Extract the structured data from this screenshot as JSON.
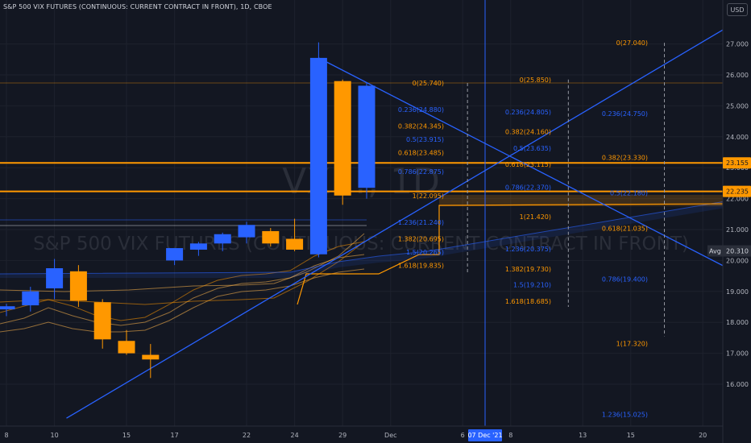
{
  "header": {
    "title": "S&P 500 VIX FUTURES (CONTINUOUS: CURRENT CONTRACT IN FRONT), 1D, CBOE",
    "currency": "USD"
  },
  "watermark": {
    "symbol": "VX1!, 1D",
    "description": "S&P 500 VIX FUTURES (CONTINUOUS: CURRENT CONTRACT IN FRONT)"
  },
  "colors": {
    "background": "#131722",
    "grid": "#1e222d",
    "bull": "#2962ff",
    "bear": "#ff9800",
    "fib_orange": "#ff9800",
    "fib_blue": "#2962ff",
    "trendline": "#2962ff",
    "axis_text": "#b2b5be",
    "crosshair": "#2962ff"
  },
  "chart_data": {
    "type": "candlestick",
    "title": "S&P 500 VIX FUTURES (CONTINUOUS: CURRENT CONTRACT IN FRONT), 1D, CBOE",
    "ylim": [
      15.3,
      27.7
    ],
    "y_ticks": [
      "16.000",
      "17.000",
      "18.000",
      "19.000",
      "20.000",
      "21.000",
      "22.000",
      "23.000",
      "24.000",
      "25.000",
      "26.000",
      "27.000"
    ],
    "x_ticks": [
      "8",
      "10",
      "15",
      "17",
      "22",
      "24",
      "29",
      "Dec",
      "6",
      "8",
      "13",
      "15",
      "20"
    ],
    "x_tick_slots": [
      0,
      2,
      5,
      7,
      10,
      12,
      14,
      16,
      19,
      21,
      24,
      26,
      29
    ],
    "crosshair": {
      "label": "07 Dec '21",
      "slot": 20
    },
    "candles": [
      {
        "slot": 0,
        "open": 18.42,
        "high": 18.6,
        "low": 18.2,
        "close": 18.52
      },
      {
        "slot": 1,
        "open": 18.55,
        "high": 19.15,
        "low": 18.35,
        "close": 19.0
      },
      {
        "slot": 2,
        "open": 19.1,
        "high": 20.05,
        "low": 18.75,
        "close": 19.75
      },
      {
        "slot": 3,
        "open": 19.65,
        "high": 19.85,
        "low": 18.5,
        "close": 18.7
      },
      {
        "slot": 4,
        "open": 18.65,
        "high": 18.75,
        "low": 17.15,
        "close": 17.45
      },
      {
        "slot": 5,
        "open": 17.4,
        "high": 17.75,
        "low": 16.95,
        "close": 17.0
      },
      {
        "slot": 6,
        "open": 16.95,
        "high": 17.3,
        "low": 16.2,
        "close": 16.8
      },
      {
        "slot": 7,
        "open": 20.0,
        "high": 20.3,
        "low": 19.85,
        "close": 20.4
      },
      {
        "slot": 8,
        "open": 20.35,
        "high": 20.6,
        "low": 20.15,
        "close": 20.55
      },
      {
        "slot": 9,
        "open": 20.55,
        "high": 20.9,
        "low": 20.3,
        "close": 20.85
      },
      {
        "slot": 10,
        "open": 20.75,
        "high": 21.25,
        "low": 20.55,
        "close": 21.15
      },
      {
        "slot": 11,
        "open": 20.95,
        "high": 21.05,
        "low": 20.45,
        "close": 20.55
      },
      {
        "slot": 12,
        "open": 20.7,
        "high": 21.35,
        "low": 20.3,
        "close": 20.35
      },
      {
        "slot": 13,
        "open": 20.2,
        "high": 27.05,
        "low": 20.1,
        "close": 26.55
      },
      {
        "slot": 14,
        "open": 25.8,
        "high": 25.85,
        "low": 21.8,
        "close": 22.1
      },
      {
        "slot": 15,
        "open": 22.35,
        "high": 25.75,
        "low": 22.0,
        "close": 25.65
      }
    ],
    "horizontal_lines": [
      {
        "price": 23.155,
        "label": "23.155",
        "color": "#ff9800"
      },
      {
        "price": 22.235,
        "label": "22.235",
        "color": "#ff9800"
      },
      {
        "price": 25.74,
        "label": "",
        "color": "#ff9800"
      }
    ],
    "average_label": {
      "text": "Avg",
      "price": 20.31,
      "value_label": "20.310"
    },
    "fib_levels": [
      {
        "text": "0(25.740)",
        "price": 25.74,
        "col": 0,
        "color": "#ff9800"
      },
      {
        "text": "0.236(24.880)",
        "price": 24.88,
        "col": 0,
        "color": "#2962ff"
      },
      {
        "text": "0.382(24.345)",
        "price": 24.345,
        "col": 0,
        "color": "#ff9800"
      },
      {
        "text": "0.5(23.915)",
        "price": 23.915,
        "col": 0,
        "color": "#2962ff"
      },
      {
        "text": "0.618(23.485)",
        "price": 23.485,
        "col": 0,
        "color": "#ff9800"
      },
      {
        "text": "0.786(22.875)",
        "price": 22.875,
        "col": 0,
        "color": "#2962ff"
      },
      {
        "text": "1(22.095)",
        "price": 22.095,
        "col": 0,
        "color": "#ff9800"
      },
      {
        "text": "1.236(21.240)",
        "price": 21.24,
        "col": 0,
        "color": "#2962ff"
      },
      {
        "text": "1.382(20.695)",
        "price": 20.695,
        "col": 0,
        "color": "#ff9800"
      },
      {
        "text": "1.5(20.265)",
        "price": 20.265,
        "col": 0,
        "color": "#2962ff"
      },
      {
        "text": "1.618(19.835)",
        "price": 19.835,
        "col": 0,
        "color": "#ff9800"
      },
      {
        "text": "0(25.850)",
        "price": 25.85,
        "col": 1,
        "color": "#ff9800"
      },
      {
        "text": "0.236(24.805)",
        "price": 24.805,
        "col": 1,
        "color": "#2962ff"
      },
      {
        "text": "0.382(24.160)",
        "price": 24.16,
        "col": 1,
        "color": "#ff9800"
      },
      {
        "text": "0.5(23.635)",
        "price": 23.635,
        "col": 1,
        "color": "#2962ff"
      },
      {
        "text": "0.618(23.115)",
        "price": 23.115,
        "col": 1,
        "color": "#ff9800"
      },
      {
        "text": "0.786(22.370)",
        "price": 22.37,
        "col": 1,
        "color": "#2962ff"
      },
      {
        "text": "1(21.420)",
        "price": 21.42,
        "col": 1,
        "color": "#ff9800"
      },
      {
        "text": "1.236(20.375)",
        "price": 20.375,
        "col": 1,
        "color": "#2962ff"
      },
      {
        "text": "1.382(19.730)",
        "price": 19.73,
        "col": 1,
        "color": "#ff9800"
      },
      {
        "text": "1.5(19.210)",
        "price": 19.21,
        "col": 1,
        "color": "#2962ff"
      },
      {
        "text": "1.618(18.685)",
        "price": 18.685,
        "col": 1,
        "color": "#ff9800"
      },
      {
        "text": "0(27.040)",
        "price": 27.04,
        "col": 2,
        "color": "#ff9800"
      },
      {
        "text": "0.236(24.750)",
        "price": 24.75,
        "col": 2,
        "color": "#2962ff"
      },
      {
        "text": "0.382(23.330)",
        "price": 23.33,
        "col": 2,
        "color": "#ff9800"
      },
      {
        "text": "0.5(22.180)",
        "price": 22.18,
        "col": 2,
        "color": "#2962ff"
      },
      {
        "text": "0.618(21.035)",
        "price": 21.035,
        "col": 2,
        "color": "#ff9800"
      },
      {
        "text": "0.786(19.400)",
        "price": 19.4,
        "col": 2,
        "color": "#2962ff"
      },
      {
        "text": "1(17.320)",
        "price": 17.32,
        "col": 2,
        "color": "#ff9800"
      },
      {
        "text": "1.236(15.025)",
        "price": 15.025,
        "col": 2,
        "color": "#2962ff"
      }
    ],
    "fib_columns": [
      {
        "col": 0,
        "slot_right": 19.2,
        "dash_top": 25.74,
        "dash_bottom": 19.6
      },
      {
        "col": 1,
        "slot_right": 23.4,
        "dash_top": 25.85,
        "dash_bottom": 18.5
      },
      {
        "col": 2,
        "slot_right": 27.4,
        "dash_top": 27.04,
        "dash_bottom": 17.55
      }
    ],
    "trendlines": [
      {
        "from": {
          "slot": 2.5,
          "price": 14.9
        },
        "to": {
          "slot": 30.8,
          "price": 27.9
        }
      },
      {
        "from": {
          "slot": 13.0,
          "price": 26.55
        },
        "to": {
          "slot": 30.8,
          "price": 19.45
        }
      }
    ]
  }
}
